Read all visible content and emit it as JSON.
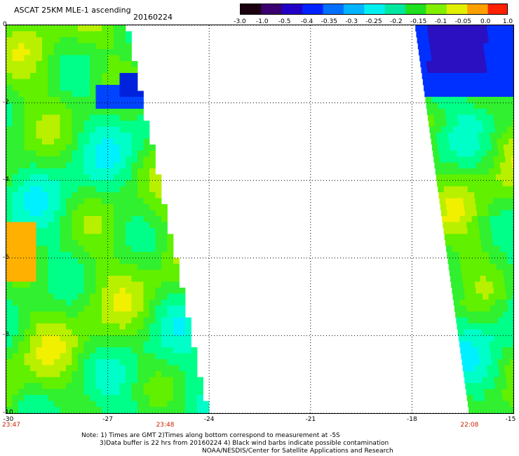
{
  "title": "ASCAT 25KM MLE-1 ascending",
  "date": "20160224",
  "colorbar": {
    "labels": [
      "-3.0",
      "-1.0",
      "-0.5",
      "-0.4",
      "-0.35",
      "-0.3",
      "-0.25",
      "-0.2",
      "-0.15",
      "-0.1",
      "-0.05",
      "0.0",
      "1.0"
    ],
    "colors": [
      "#1a0010",
      "#3a0070",
      "#2200c8",
      "#0022ff",
      "#0070ff",
      "#00b4ff",
      "#00f0f0",
      "#00e8a0",
      "#20e020",
      "#80f000",
      "#e0f000",
      "#ffa000",
      "#ff2000"
    ]
  },
  "map": {
    "x_range": [
      -30,
      -15
    ],
    "y_range": [
      0,
      -10
    ],
    "x_ticks": [
      "-30",
      "-27",
      "-24",
      "-21",
      "-18",
      "-15"
    ],
    "y_ticks": [
      "0",
      "-2",
      "-4",
      "-6",
      "-8",
      "-10"
    ],
    "times": [
      {
        "label": "23:47",
        "lon": -30
      },
      {
        "label": "23:48",
        "lon": -25.3
      },
      {
        "label": "22:08",
        "lon": -16.3
      }
    ]
  },
  "notes": [
    "Note: 1) Times are GMT 2)Times along bottom correspond to measurement at -5S",
    "3)Data buffer is 22 hrs from 20160224 4) Black wind barbs indicate possible contamination",
    "NOAA/NESDIS/Center for Satellite Applications and Research"
  ]
}
